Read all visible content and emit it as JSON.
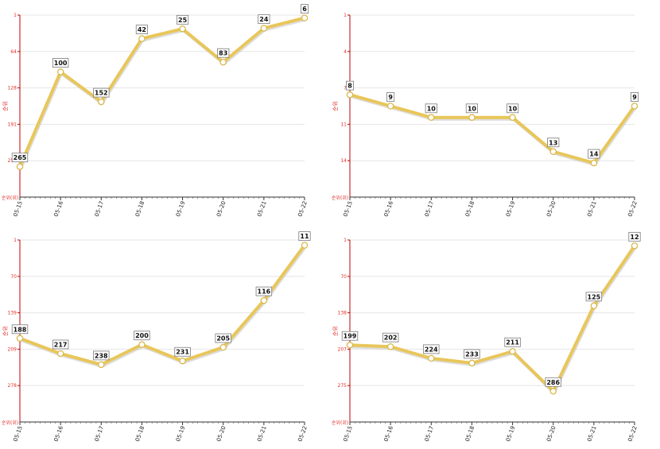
{
  "colors": {
    "line": "#e8c65a",
    "line_shadow": "#c8c8c8",
    "marker_fill": "#ffffff",
    "marker_stroke": "#d9b84a",
    "axis": "#c00000",
    "grid": "#e6e6e6",
    "tick_text": "#e0302a"
  },
  "chart_data": [
    {
      "type": "line",
      "categories": [
        "05-15",
        "05-16",
        "05-17",
        "05-18",
        "05-19",
        "05-20",
        "05-21",
        "05-22"
      ],
      "values": [
        265,
        100,
        152,
        42,
        25,
        83,
        24,
        6
      ],
      "data_labels": [
        "265",
        "100",
        "152",
        "42",
        "25",
        "83",
        "24",
        "6"
      ],
      "ylabel": "순위",
      "y_bottom_label": "순위(위)",
      "y_ticks": [
        "1",
        "64",
        "128",
        "191",
        "254"
      ],
      "ylim": [
        1,
        318
      ],
      "y_inverted": true,
      "grid": true
    },
    {
      "type": "line",
      "categories": [
        "05-15",
        "05-16",
        "05-17",
        "05-18",
        "05-19",
        "05-20",
        "05-21",
        "05-22"
      ],
      "values": [
        8,
        9,
        10,
        10,
        10,
        13,
        14,
        9
      ],
      "data_labels": [
        "8",
        "9",
        "10",
        "10",
        "10",
        "13",
        "14",
        "9"
      ],
      "ylabel": "순위",
      "y_bottom_label": "순위(위)",
      "y_ticks": [
        "1",
        "4",
        "7",
        "11",
        "14"
      ],
      "ylim": [
        1,
        17
      ],
      "y_inverted": true,
      "grid": true
    },
    {
      "type": "line",
      "categories": [
        "05-15",
        "05-16",
        "05-17",
        "05-18",
        "05-19",
        "05-20",
        "05-21",
        "05-22"
      ],
      "values": [
        188,
        217,
        238,
        200,
        231,
        205,
        116,
        11
      ],
      "data_labels": [
        "188",
        "217",
        "238",
        "200",
        "231",
        "205",
        "116",
        "11"
      ],
      "ylabel": "순위",
      "y_bottom_label": "순위(위)",
      "y_ticks": [
        "1",
        "70",
        "139",
        "209",
        "278"
      ],
      "ylim": [
        1,
        347
      ],
      "y_inverted": true,
      "grid": true
    },
    {
      "type": "line",
      "categories": [
        "05-15",
        "05-16",
        "05-17",
        "05-18",
        "05-19",
        "05-20",
        "05-21",
        "05-22"
      ],
      "values": [
        199,
        202,
        224,
        233,
        211,
        286,
        125,
        12
      ],
      "data_labels": [
        "199",
        "202",
        "224",
        "233",
        "211",
        "286",
        "125",
        "12"
      ],
      "ylabel": "순위",
      "y_bottom_label": "순위(위)",
      "y_ticks": [
        "1",
        "70",
        "138",
        "207",
        "275"
      ],
      "ylim": [
        1,
        344
      ],
      "y_inverted": true,
      "grid": true
    }
  ]
}
